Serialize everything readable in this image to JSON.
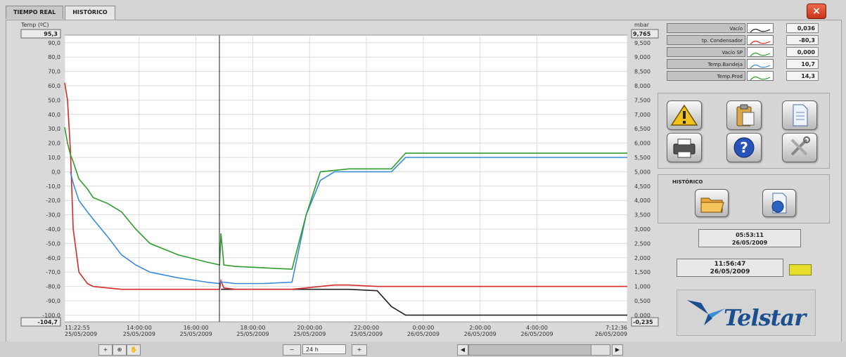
{
  "tabs": [
    {
      "label": "TIEMPO REAL"
    },
    {
      "label": "HISTÓRICO"
    }
  ],
  "close_icon": "×",
  "chart": {
    "left_axis_title": "Temp (ºC)",
    "right_axis_title": "mbar",
    "left_max_box": "95,3",
    "left_min_box": "-104,7",
    "right_max_box": "9,765",
    "right_min_box": "-0,235",
    "left_ticks": [
      "90,0",
      "80,0",
      "70,0",
      "60,0",
      "50,0",
      "40,0",
      "30,0",
      "20,0",
      "10,0",
      "0,0",
      "-10,0",
      "-20,0",
      "-30,0",
      "-40,0",
      "-50,0",
      "-60,0",
      "-70,0",
      "-80,0",
      "-90,0",
      "-100,0"
    ],
    "right_ticks": [
      "9,500",
      "9,000",
      "8,500",
      "8,000",
      "7,500",
      "7,000",
      "6,500",
      "6,000",
      "5,500",
      "5,000",
      "4,500",
      "4,000",
      "3,500",
      "3,000",
      "2,500",
      "2,000",
      "1,500",
      "1,000",
      "0,500",
      "0,000"
    ],
    "x_ticks": [
      {
        "time": "11:22:55",
        "date": "25/05/2009"
      },
      {
        "time": "14:00:00",
        "date": "25/05/2009"
      },
      {
        "time": "16:00:00",
        "date": "25/05/2009"
      },
      {
        "time": "18:00:00",
        "date": "25/05/2009"
      },
      {
        "time": "20:00:00",
        "date": "25/05/2009"
      },
      {
        "time": "22:00:00",
        "date": "25/05/2009"
      },
      {
        "time": "0:00:00",
        "date": "26/05/2009"
      },
      {
        "time": "2:00:00",
        "date": "26/05/2009"
      },
      {
        "time": "4:00:00",
        "date": "26/05/2009"
      },
      {
        "time": "7:12:36",
        "date": "26/05/2009"
      }
    ]
  },
  "chart_data": {
    "type": "line",
    "xlabel": "",
    "ylabel": "Temp (ºC)",
    "y2label": "mbar",
    "ylim": [
      -104.7,
      95.3
    ],
    "y2lim": [
      -0.235,
      9.765
    ],
    "xlim": [
      "25/05/2009 11:22:55",
      "26/05/2009 07:12:36"
    ],
    "x_hours_from_start": [
      0,
      0.1,
      0.2,
      0.3,
      0.5,
      0.8,
      1.0,
      1.5,
      2.0,
      2.5,
      3.0,
      4.0,
      5.0,
      5.45,
      5.5,
      5.6,
      6.0,
      7.0,
      8.0,
      8.5,
      9.0,
      9.5,
      10.0,
      11.0,
      11.5,
      12.0,
      13.0,
      14.0,
      16.0,
      18.0,
      19.8
    ],
    "series": [
      {
        "name": "Vacío",
        "axis": "right",
        "color": "#222222",
        "values": [
          null,
          null,
          null,
          null,
          null,
          null,
          null,
          null,
          null,
          null,
          null,
          null,
          null,
          null,
          0.9,
          0.9,
          0.9,
          0.9,
          0.9,
          0.9,
          0.9,
          0.9,
          0.9,
          0.85,
          0.3,
          0.0,
          0.0,
          0.0,
          0.0,
          0.0,
          0.0
        ]
      },
      {
        "name": "Tp. Condensador",
        "axis": "left",
        "color": "#d62a2a",
        "values": [
          62,
          50,
          15,
          -40,
          -70,
          -78,
          -80,
          -81,
          -82,
          -82,
          -82,
          -82,
          -82,
          -82,
          -76,
          -81,
          -82,
          -82,
          -82,
          -81,
          -80,
          -79,
          -79,
          -80,
          -80,
          -80,
          -80,
          -80,
          -80,
          -80,
          -80
        ]
      },
      {
        "name": "Vacío SP",
        "axis": "right",
        "color": "#2e9d2e",
        "values": []
      },
      {
        "name": "Temp.Bandeja",
        "axis": "left",
        "color": "#3a8bd8",
        "values": [
          null,
          null,
          0,
          -8,
          -20,
          -28,
          -33,
          -45,
          -58,
          -65,
          -70,
          -74,
          -77,
          -78,
          -77,
          -77,
          -78,
          -78,
          -77,
          -30,
          -6,
          0,
          0,
          0,
          0,
          10,
          10,
          10,
          10,
          10,
          10
        ]
      },
      {
        "name": "Temp.Prod",
        "axis": "left",
        "color": "#2e9d2e",
        "values": [
          31,
          20,
          12,
          7,
          -5,
          -12,
          -18,
          -22,
          -28,
          -40,
          -50,
          -58,
          -63,
          -65,
          -43,
          -65,
          -66,
          -67,
          -68,
          -30,
          0,
          1,
          2,
          2,
          2,
          13,
          13,
          13,
          13,
          13,
          13
        ]
      }
    ],
    "grid": true,
    "legend": "right"
  },
  "legend": [
    {
      "name": "Vacío",
      "value": "0,036",
      "color": "#222222"
    },
    {
      "name": "tp. Condensador",
      "value": "-80,3",
      "color": "#d62a2a"
    },
    {
      "name": "Vacío SP",
      "value": "0,000",
      "color": "#2e9d2e"
    },
    {
      "name": "Temp.Bandeja",
      "value": "10,7",
      "color": "#3a8bd8"
    },
    {
      "name": "Temp.Prod",
      "value": "14,3",
      "color": "#2e9d2e"
    }
  ],
  "icons": {
    "warning": "warning-icon",
    "clipboard": "clipboard-icon",
    "document": "document-icon",
    "printer": "printer-icon",
    "help": "help-icon",
    "tools": "tools-icon",
    "folder": "folder-icon",
    "report": "report-icon"
  },
  "historico": {
    "label": "HISTÓRICO"
  },
  "cursor_time": {
    "time": "05:53:11",
    "date": "26/05/2009"
  },
  "current_time": {
    "time": "11:56:47",
    "date": "26/05/2009"
  },
  "logo": {
    "text": "Telstar"
  },
  "bottom": {
    "zoom_value": "24 h"
  }
}
